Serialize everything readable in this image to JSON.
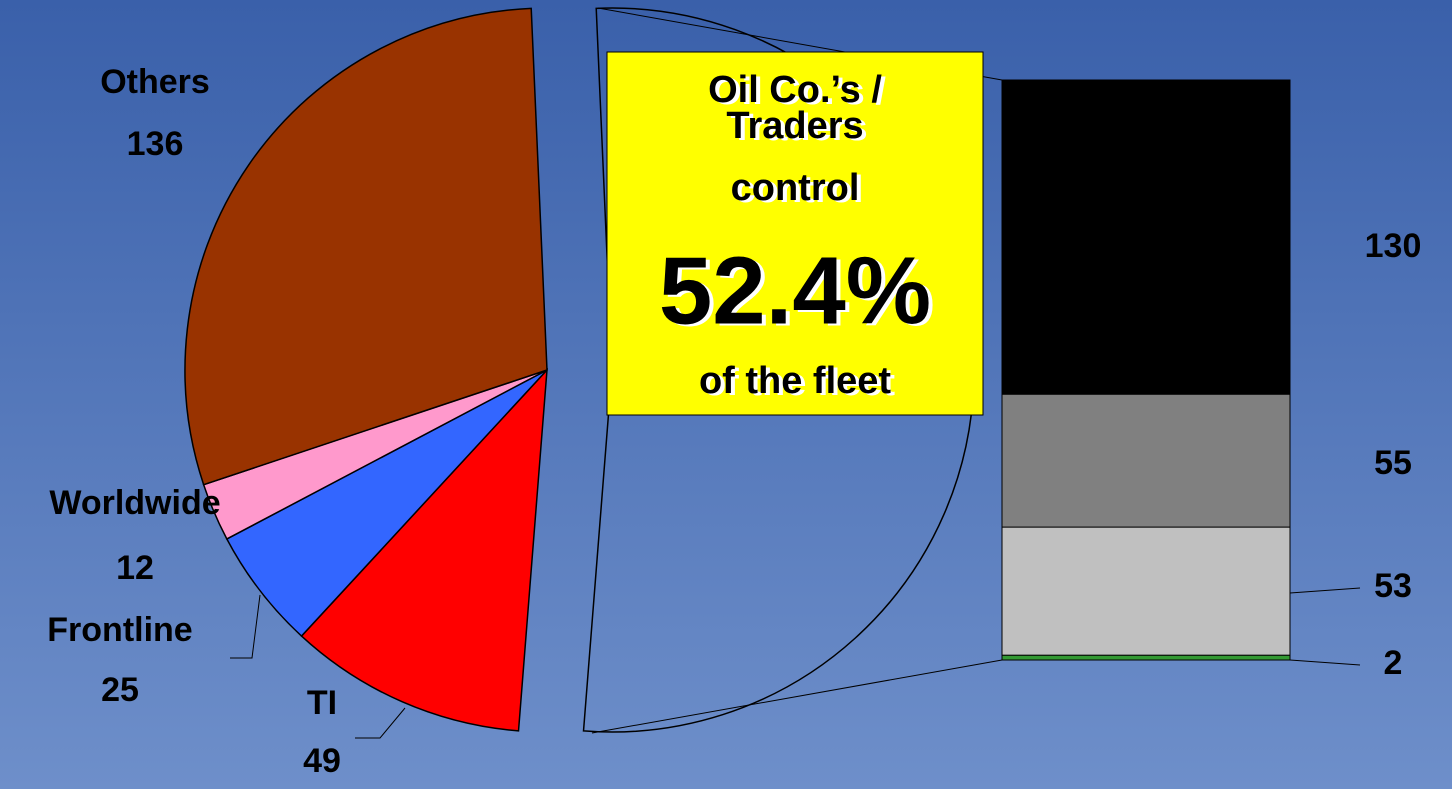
{
  "chart_data": {
    "type": "bar-of-pie",
    "pie": {
      "labels": [
        null,
        "TI",
        "Frontline",
        "Worldwide",
        "Others"
      ],
      "values": [
        240,
        49,
        25,
        12,
        136
      ],
      "colors": [
        "none",
        "#ff0000",
        "#3366ff",
        "#ff99cc",
        "#993300"
      ]
    },
    "bar": {
      "values": [
        2,
        53,
        55,
        130
      ],
      "colors": [
        "#339933",
        "#c0c0c0",
        "#808080",
        "#000000"
      ]
    },
    "annotation": [
      "Oil Co.’s /",
      "Traders",
      "control",
      "52.4%",
      "of the fleet"
    ]
  }
}
